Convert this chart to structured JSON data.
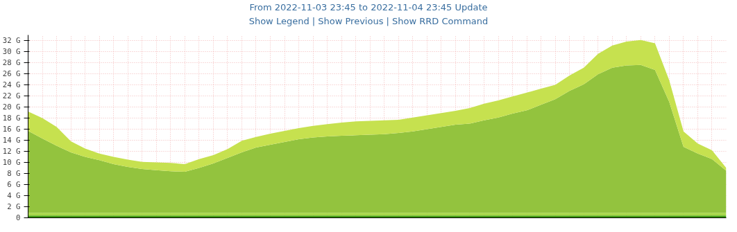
{
  "chart_data": {
    "type": "area",
    "stacked": true,
    "annotations": [
      "From 2022-11-03 23:45 to 2022-11-04 23:45 Update",
      "Show Legend | Show Previous | Show RRD Command"
    ],
    "categories": [
      null,
      null,
      null,
      null,
      null,
      null,
      null,
      null,
      null,
      null,
      null,
      null,
      null,
      null,
      null,
      null,
      null,
      null,
      null,
      null,
      null,
      null,
      null,
      null,
      null,
      null,
      null,
      null,
      null,
      null,
      null,
      null,
      null,
      null,
      null,
      null,
      null,
      null,
      null,
      null,
      null,
      null,
      null,
      null,
      null,
      null,
      null,
      null,
      null,
      null
    ],
    "series": [
      {
        "color": "#3f9a11",
        "values": [
          0.4,
          0.4,
          0.4,
          0.4,
          0.4,
          0.4,
          0.4,
          0.4,
          0.4,
          0.4,
          0.4,
          0.4,
          0.4,
          0.4,
          0.4,
          0.4,
          0.4,
          0.4,
          0.4,
          0.4,
          0.4,
          0.4,
          0.4,
          0.4,
          0.4,
          0.4,
          0.4,
          0.4,
          0.4,
          0.4,
          0.4,
          0.4,
          0.4,
          0.4,
          0.4,
          0.4,
          0.4,
          0.4,
          0.4,
          0.4,
          0.4,
          0.4,
          0.4,
          0.4,
          0.4,
          0.4,
          0.4,
          0.4,
          0.4,
          0.4
        ]
      },
      {
        "color": "#a8d84a",
        "values": [
          0.5,
          0.5,
          0.5,
          0.5,
          0.5,
          0.5,
          0.5,
          0.5,
          0.5,
          0.5,
          0.5,
          0.5,
          0.5,
          0.5,
          0.5,
          0.5,
          0.5,
          0.5,
          0.5,
          0.5,
          0.5,
          0.5,
          0.5,
          0.5,
          0.5,
          0.5,
          0.5,
          0.5,
          0.5,
          0.5,
          0.5,
          0.5,
          0.5,
          0.5,
          0.5,
          0.5,
          0.5,
          0.5,
          0.5,
          0.5,
          0.5,
          0.5,
          0.5,
          0.5,
          0.5,
          0.5,
          0.5,
          0.5,
          0.5,
          0.5
        ]
      },
      {
        "color": "#93c33e",
        "values": [
          14.8,
          13.4,
          12.1,
          10.9,
          10.1,
          9.5,
          8.8,
          8.3,
          7.9,
          7.7,
          7.5,
          7.4,
          8.1,
          8.9,
          9.9,
          10.9,
          11.8,
          12.3,
          12.8,
          13.3,
          13.6,
          13.8,
          13.9,
          14.0,
          14.1,
          14.2,
          14.4,
          14.7,
          15.1,
          15.5,
          15.9,
          16.1,
          16.7,
          17.2,
          17.9,
          18.5,
          19.5,
          20.5,
          22.0,
          23.2,
          25.0,
          26.2,
          26.6,
          26.7,
          25.8,
          20.0,
          11.9,
          10.7,
          9.7,
          7.6
        ]
      },
      {
        "color": "#c6e14f",
        "values": [
          3.5,
          3.7,
          3.4,
          2.0,
          1.5,
          1.2,
          1.3,
          1.3,
          1.3,
          1.4,
          1.5,
          1.4,
          1.6,
          1.5,
          1.6,
          2.1,
          1.9,
          2.0,
          2.0,
          2.0,
          2.1,
          2.2,
          2.4,
          2.5,
          2.5,
          2.5,
          2.4,
          2.5,
          2.5,
          2.5,
          2.5,
          2.8,
          3.0,
          3.1,
          3.1,
          3.2,
          2.9,
          2.6,
          2.8,
          3.0,
          3.7,
          4.0,
          4.3,
          4.5,
          4.8,
          3.9,
          2.8,
          1.8,
          1.6,
          0.5
        ]
      }
    ],
    "ylim": [
      0,
      33
    ],
    "yticks": [
      0,
      {
        "value": 2,
        "label": "2 G"
      },
      {
        "value": 4,
        "label": "4 G"
      },
      {
        "value": 6,
        "label": "6 G"
      },
      {
        "value": 8,
        "label": "8 G"
      },
      {
        "value": 10,
        "label": "10 G"
      },
      {
        "value": 12,
        "label": "12 G"
      },
      {
        "value": 14,
        "label": "14 G"
      },
      {
        "value": 16,
        "label": "16 G"
      },
      {
        "value": 18,
        "label": "18 G"
      },
      {
        "value": 20,
        "label": "20 G"
      },
      {
        "value": 22,
        "label": "22 G"
      },
      {
        "value": 24,
        "label": "24 G"
      },
      {
        "value": 26,
        "label": "26 G"
      },
      {
        "value": 28,
        "label": "28 G"
      },
      {
        "value": 30,
        "label": "30 G"
      },
      {
        "value": 32,
        "label": "32 G"
      }
    ],
    "grid": true,
    "tick_labels": "y"
  }
}
